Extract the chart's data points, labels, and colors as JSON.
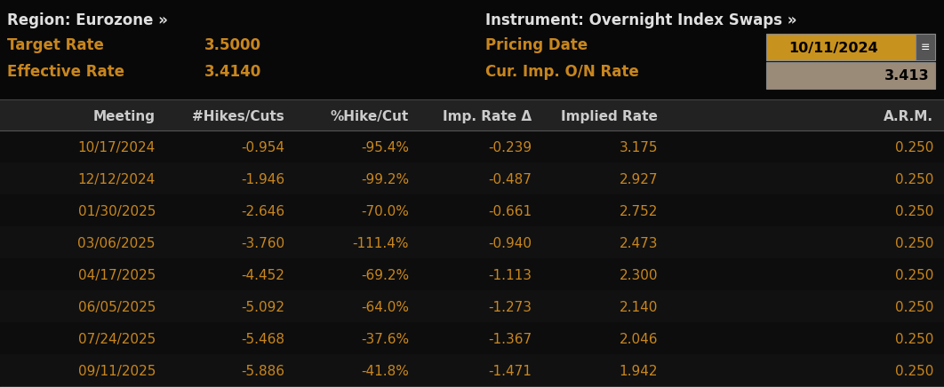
{
  "bg_color": "#080808",
  "orange_color": "#c8861e",
  "white_color": "#e0e0e0",
  "header_text_color": "#cccccc",
  "region_label": "Region: Eurozone »",
  "instrument_label": "Instrument: Overnight Index Swaps »",
  "target_rate_label": "Target Rate",
  "target_rate_value": "3.5000",
  "effective_rate_label": "Effective Rate",
  "effective_rate_value": "3.4140",
  "pricing_date_label": "Pricing Date",
  "pricing_date_value": "10/11/2024",
  "cur_imp_label": "Cur. Imp. O/N Rate",
  "cur_imp_value": "3.413",
  "col_headers": [
    "Meeting",
    "#Hikes/Cuts",
    "%Hike/Cut",
    "Imp. Rate Δ",
    "Implied Rate",
    "A.R.M."
  ],
  "rows": [
    [
      "10/17/2024",
      "-0.954",
      "-95.4%",
      "-0.239",
      "3.175",
      "0.250"
    ],
    [
      "12/12/2024",
      "-1.946",
      "-99.2%",
      "-0.487",
      "2.927",
      "0.250"
    ],
    [
      "01/30/2025",
      "-2.646",
      "-70.0%",
      "-0.661",
      "2.752",
      "0.250"
    ],
    [
      "03/06/2025",
      "-3.760",
      "-111.4%",
      "-0.940",
      "2.473",
      "0.250"
    ],
    [
      "04/17/2025",
      "-4.452",
      "-69.2%",
      "-1.113",
      "2.300",
      "0.250"
    ],
    [
      "06/05/2025",
      "-5.092",
      "-64.0%",
      "-1.273",
      "2.140",
      "0.250"
    ],
    [
      "07/24/2025",
      "-5.468",
      "-37.6%",
      "-1.367",
      "2.046",
      "0.250"
    ],
    [
      "09/11/2025",
      "-5.886",
      "-41.8%",
      "-1.471",
      "1.942",
      "0.250"
    ]
  ],
  "pricing_date_bg": "#c8921e",
  "cur_imp_bg": "#9a8a78",
  "small_btn_bg": "#555555",
  "figsize": [
    10.62,
    4.36
  ],
  "dpi": 100
}
